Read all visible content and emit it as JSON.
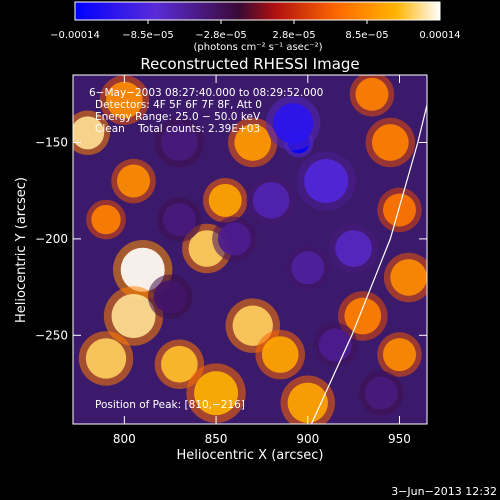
{
  "chart_data": {
    "type": "heatmap",
    "title": "Reconstructed RHESSI Image",
    "xlabel": "Heliocentric X (arcsec)",
    "ylabel": "Heliocentric Y (arcsec)",
    "xlim": [
      772,
      965
    ],
    "ylim": [
      -296,
      -115
    ],
    "x_ticks": [
      800,
      850,
      900,
      950
    ],
    "y_ticks": [
      -150,
      -200,
      -250
    ],
    "x_tick_labels": [
      "800",
      "850",
      "900",
      "950"
    ],
    "y_tick_labels": [
      "−150",
      "−200",
      "−250"
    ],
    "colorbar": {
      "range": [
        -0.00014,
        0.00014
      ],
      "tick_labels": [
        "−0.00014",
        "−8.5e−05",
        "−2.8e−05",
        "2.8e−05",
        "8.5e−05",
        "0.00014"
      ],
      "units": "(photons cm⁻² s⁻¹ asec⁻²)",
      "colors": [
        "#0000ff",
        "#5a2cd8",
        "#3a0a35",
        "#b01010",
        "#ff6a00",
        "#ffb400",
        "#ffffff"
      ]
    },
    "annotations": {
      "time": "6−May−2003 08:27:40.000 to 08:29:52.000",
      "detectors": "Detectors: 4F 5F 6F 7F 8F, Att 0",
      "energy": "Energy Range: 25.0 − 50.0 keV",
      "clean": "Clean    Total counts: 2.39E+03",
      "peak": "Position of Peak: [810,−216]"
    },
    "peak_position": [
      810,
      -216
    ],
    "limb_curve": [
      [
        902,
        -296
      ],
      [
        924,
        -250
      ],
      [
        945,
        -200
      ],
      [
        960,
        -150
      ],
      [
        969,
        -115
      ]
    ],
    "intensity_blobs": [
      {
        "x": 810,
        "y": -216,
        "v": 1.0,
        "r": 12
      },
      {
        "x": 805,
        "y": -240,
        "v": 0.9,
        "r": 12
      },
      {
        "x": 790,
        "y": -262,
        "v": 0.85,
        "r": 11
      },
      {
        "x": 830,
        "y": -265,
        "v": 0.8,
        "r": 10
      },
      {
        "x": 845,
        "y": -205,
        "v": 0.85,
        "r": 10
      },
      {
        "x": 855,
        "y": -180,
        "v": 0.7,
        "r": 9
      },
      {
        "x": 870,
        "y": -150,
        "v": 0.65,
        "r": 10
      },
      {
        "x": 780,
        "y": -145,
        "v": 0.9,
        "r": 9
      },
      {
        "x": 800,
        "y": -128,
        "v": 0.6,
        "r": 10
      },
      {
        "x": 805,
        "y": -170,
        "v": 0.6,
        "r": 9
      },
      {
        "x": 790,
        "y": -190,
        "v": 0.55,
        "r": 8
      },
      {
        "x": 870,
        "y": -245,
        "v": 0.85,
        "r": 11
      },
      {
        "x": 885,
        "y": -260,
        "v": 0.7,
        "r": 10
      },
      {
        "x": 850,
        "y": -280,
        "v": 0.75,
        "r": 12
      },
      {
        "x": 900,
        "y": -285,
        "v": 0.7,
        "r": 11
      },
      {
        "x": 930,
        "y": -240,
        "v": 0.55,
        "r": 10
      },
      {
        "x": 950,
        "y": -260,
        "v": 0.6,
        "r": 9
      },
      {
        "x": 955,
        "y": -220,
        "v": 0.6,
        "r": 10
      },
      {
        "x": 950,
        "y": -185,
        "v": 0.5,
        "r": 9
      },
      {
        "x": 945,
        "y": -150,
        "v": 0.55,
        "r": 10
      },
      {
        "x": 935,
        "y": -125,
        "v": 0.55,
        "r": 9
      },
      {
        "x": 895,
        "y": -150,
        "v": -1.0,
        "r": 6
      },
      {
        "x": 892,
        "y": -140,
        "v": -0.8,
        "r": 11
      },
      {
        "x": 910,
        "y": -170,
        "v": -0.6,
        "r": 12
      },
      {
        "x": 880,
        "y": -180,
        "v": -0.45,
        "r": 10
      },
      {
        "x": 925,
        "y": -205,
        "v": -0.5,
        "r": 10
      },
      {
        "x": 900,
        "y": -215,
        "v": -0.4,
        "r": 9
      },
      {
        "x": 860,
        "y": -200,
        "v": -0.35,
        "r": 9
      },
      {
        "x": 830,
        "y": -150,
        "v": -0.3,
        "r": 10
      },
      {
        "x": 830,
        "y": -190,
        "v": -0.3,
        "r": 9
      },
      {
        "x": 915,
        "y": -255,
        "v": -0.35,
        "r": 9
      },
      {
        "x": 825,
        "y": -230,
        "v": -0.25,
        "r": 9
      },
      {
        "x": 940,
        "y": -280,
        "v": -0.3,
        "r": 9
      }
    ]
  },
  "footer": {
    "timestamp": "3−Jun−2013 12:32"
  }
}
